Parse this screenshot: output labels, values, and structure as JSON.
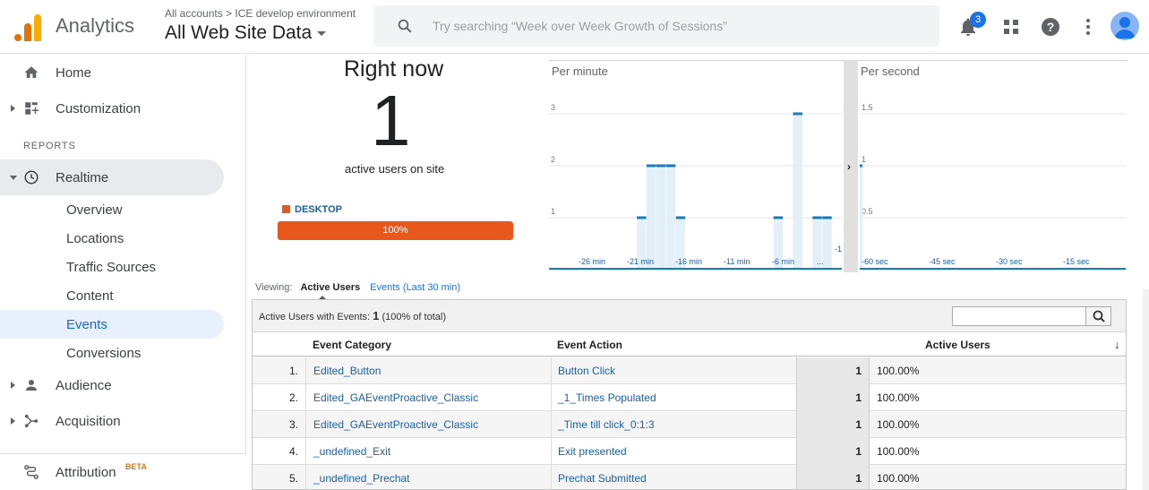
{
  "header": {
    "app_name": "Analytics",
    "breadcrumb": "All accounts > ICE develop environment",
    "property": "All Web Site Data",
    "search_placeholder": "Try searching “Week over Week Growth of Sessions”",
    "notifications_count": "3",
    "icons": [
      "bell-icon",
      "apps-grid-icon",
      "help-icon",
      "more-vert-icon",
      "avatar"
    ]
  },
  "sidebar": {
    "home": "Home",
    "customization": "Customization",
    "reports_label": "REPORTS",
    "realtime": "Realtime",
    "sub_items": [
      "Overview",
      "Locations",
      "Traffic Sources",
      "Content",
      "Events",
      "Conversions"
    ],
    "active_sub": "Events",
    "audience": "Audience",
    "acquisition": "Acquisition",
    "attribution": "Attribution",
    "attribution_badge": "BETA"
  },
  "rightnow": {
    "title": "Right now",
    "count": "1",
    "label": "active users on site",
    "device_name": "DESKTOP",
    "device_pct": "100%",
    "device_color": "#e8571b"
  },
  "chart_data": [
    {
      "type": "bar",
      "title": "Per minute",
      "x_ticks": [
        "-26 min",
        "-21 min",
        "-16 min",
        "-11 min",
        "-6 min",
        "..."
      ],
      "y_ticks": [
        "1",
        "2",
        "3"
      ],
      "ylim": [
        0,
        3.5
      ],
      "xlim": [
        -30,
        0
      ],
      "x": [
        -21,
        -20,
        -19,
        -18,
        -17,
        -7,
        -6,
        -5,
        -4,
        -3,
        -2
      ],
      "values": [
        1,
        2,
        2,
        2,
        1,
        1,
        0,
        3,
        0,
        1,
        1
      ],
      "trailing_label": "-1"
    },
    {
      "type": "bar",
      "title": "Per second",
      "x_ticks": [
        "-60 sec",
        "-45 sec",
        "-30 sec",
        "-15 sec"
      ],
      "y_ticks": [
        "0.5",
        "1",
        "1.5"
      ],
      "ylim": [
        0,
        1.75
      ],
      "xlim": [
        -60,
        0
      ],
      "x": [
        -60
      ],
      "values": [
        1
      ]
    }
  ],
  "viewing": {
    "label": "Viewing:",
    "active_tab": "Active Users",
    "other_tab": "Events (Last 30 min)"
  },
  "table": {
    "summary_prefix": "Active Users with Events:",
    "summary_count": "1",
    "summary_pct": "(100% of total)",
    "columns": [
      "Event Category",
      "Event Action",
      "Active Users"
    ],
    "rows": [
      {
        "idx": "1.",
        "category": "Edited_Button",
        "action": "Button Click",
        "users": "1",
        "pct": "100.00%"
      },
      {
        "idx": "2.",
        "category": "Edited_GAEventProactive_Classic",
        "action": "_1_Times Populated",
        "users": "1",
        "pct": "100.00%"
      },
      {
        "idx": "3.",
        "category": "Edited_GAEventProactive_Classic",
        "action": "_Time till click_0:1:3",
        "users": "1",
        "pct": "100.00%"
      },
      {
        "idx": "4.",
        "category": "_undefined_Exit",
        "action": "Exit presented",
        "users": "1",
        "pct": "100.00%"
      },
      {
        "idx": "5.",
        "category": "_undefined_Prechat",
        "action": "Prechat Submitted",
        "users": "1",
        "pct": "100.00%"
      }
    ]
  }
}
